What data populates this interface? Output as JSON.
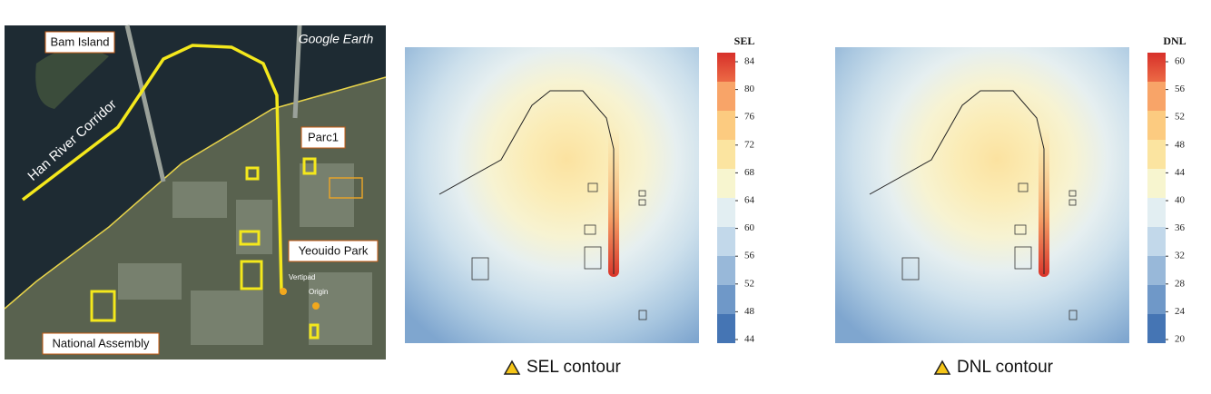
{
  "map_panel": {
    "watermark": "Google Earth",
    "labels": [
      "Bam Island",
      "Han River Corridor",
      "Parc1",
      "Yeouido Park",
      "National Assembly"
    ],
    "small_labels": [
      "Vertipad",
      "Origin"
    ]
  },
  "sel_panel": {
    "colorbar_title": "SEL",
    "ticks": [
      44,
      48,
      52,
      56,
      60,
      64,
      68,
      72,
      76,
      80,
      84
    ],
    "caption": "SEL contour"
  },
  "dnl_panel": {
    "colorbar_title": "DNL",
    "ticks": [
      20,
      24,
      28,
      32,
      36,
      40,
      44,
      48,
      52,
      56,
      60
    ],
    "caption": "DNL contour"
  }
}
